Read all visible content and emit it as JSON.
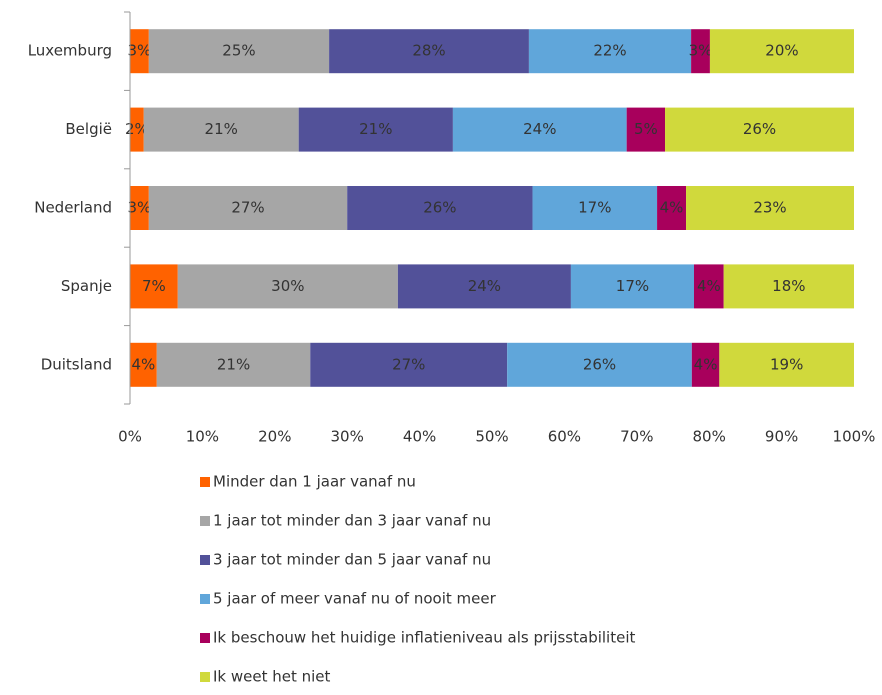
{
  "chart_data": {
    "type": "stacked_barh",
    "categories": [
      "Luxemburg",
      "België",
      "Nederland",
      "Spanje",
      "Duitsland"
    ],
    "series": [
      {
        "name": "Minder dan 1 jaar vanaf nu",
        "color": "#ff6200",
        "values": [
          2.6,
          1.9,
          2.6,
          6.6,
          3.7
        ],
        "value_labels": [
          "3%",
          "2%",
          "3%",
          "7%",
          "4%"
        ]
      },
      {
        "name": "1 jaar tot minder dan 3 jaar vanaf nu",
        "color": "#a6a6a6",
        "values": [
          24.9,
          21.4,
          27.4,
          30.4,
          21.2
        ],
        "value_labels": [
          "25%",
          "21%",
          "27%",
          "30%",
          "21%"
        ]
      },
      {
        "name": "3 jaar tot minder dan 5 jaar vanaf nu",
        "color": "#525199",
        "values": [
          27.6,
          21.3,
          25.6,
          23.9,
          27.2
        ],
        "value_labels": [
          "28%",
          "21%",
          "26%",
          "24%",
          "27%"
        ]
      },
      {
        "name": "5 jaar of meer vanaf nu of nooit meer",
        "color": "#60a6da",
        "values": [
          22.4,
          24.0,
          17.2,
          17.0,
          25.5
        ],
        "value_labels": [
          "22%",
          "24%",
          "17%",
          "17%",
          "26%"
        ]
      },
      {
        "name": "Ik beschouw het huidige inflatieniveau als prijsstabiliteit",
        "color": "#a8005c",
        "values": [
          2.6,
          5.3,
          4.0,
          4.1,
          3.8
        ],
        "value_labels": [
          "3%",
          "5%",
          "4%",
          "4%",
          "4%"
        ]
      },
      {
        "name": "Ik weet het niet",
        "color": "#d0d93c",
        "values": [
          19.9,
          26.1,
          23.2,
          18.0,
          18.6
        ],
        "value_labels": [
          "20%",
          "26%",
          "23%",
          "18%",
          "19%"
        ]
      }
    ],
    "xlim": [
      0,
      100
    ],
    "xticks": [
      {
        "value": 0,
        "label": "0%"
      },
      {
        "value": 10,
        "label": "10%"
      },
      {
        "value": 20,
        "label": "20%"
      },
      {
        "value": 30,
        "label": "30%"
      },
      {
        "value": 40,
        "label": "40%"
      },
      {
        "value": 50,
        "label": "50%"
      },
      {
        "value": 60,
        "label": "60%"
      },
      {
        "value": 70,
        "label": "70%"
      },
      {
        "value": 80,
        "label": "80%"
      },
      {
        "value": 90,
        "label": "90%"
      },
      {
        "value": 100,
        "label": "100%"
      }
    ],
    "legend": "bottom"
  }
}
